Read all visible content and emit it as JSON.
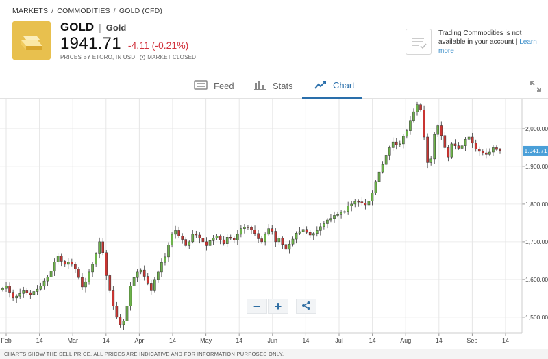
{
  "breadcrumb": {
    "items": [
      "MARKETS",
      "COMMODITIES",
      "GOLD (CFD)"
    ],
    "sep": "/"
  },
  "instrument": {
    "ticker": "GOLD",
    "sep": "|",
    "name": "Gold",
    "price": "1941.71",
    "change": "-4.11 (-0.21%)",
    "price_source": "PRICES BY ETORO, IN USD",
    "market_status": "MARKET CLOSED",
    "change_color": "#d1323c",
    "logo_color": "#e8c04e"
  },
  "notice": {
    "text": "Trading Commodities is not available in your account |",
    "link": "Learn more"
  },
  "tabs": [
    {
      "label": "Feed",
      "icon": "feed-icon"
    },
    {
      "label": "Stats",
      "icon": "stats-icon"
    },
    {
      "label": "Chart",
      "icon": "chart-icon",
      "active": true
    }
  ],
  "zoom": {
    "minus": "−",
    "plus": "+"
  },
  "footer": {
    "text": "CHARTS SHOW THE SELL PRICE. ALL PRICES ARE INDICATIVE AND FOR INFORMATION PURPOSES ONLY."
  },
  "chart_data": {
    "type": "candlestick",
    "x_labels": [
      "Feb",
      "14",
      "Mar",
      "14",
      "Apr",
      "14",
      "May",
      "14",
      "Jun",
      "14",
      "Jul",
      "14",
      "Aug",
      "14",
      "Sep",
      "14"
    ],
    "y_ticks": [
      "2,000.00",
      "1,900.00",
      "1,800.00",
      "1,700.00",
      "1,600.00",
      "1,500.00"
    ],
    "y_tick_values": [
      2000,
      1900,
      1800,
      1700,
      1600,
      1500
    ],
    "ylim": [
      1458,
      2078
    ],
    "last_price_label": "1,941.71",
    "last_price": 1941.71,
    "up_color": "#6db34a",
    "down_color": "#c93532",
    "closes": [
      1576,
      1583,
      1566,
      1551,
      1556,
      1563,
      1570,
      1565,
      1560,
      1568,
      1574,
      1582,
      1596,
      1606,
      1622,
      1646,
      1662,
      1648,
      1640,
      1646,
      1640,
      1628,
      1605,
      1580,
      1594,
      1620,
      1640,
      1668,
      1700,
      1671,
      1610,
      1570,
      1530,
      1500,
      1480,
      1490,
      1530,
      1583,
      1605,
      1620,
      1625,
      1608,
      1590,
      1570,
      1600,
      1620,
      1645,
      1660,
      1692,
      1720,
      1730,
      1715,
      1706,
      1690,
      1700,
      1720,
      1718,
      1710,
      1700,
      1690,
      1703,
      1710,
      1715,
      1705,
      1695,
      1712,
      1709,
      1705,
      1720,
      1735,
      1739,
      1738,
      1732,
      1722,
      1708,
      1700,
      1720,
      1735,
      1728,
      1700,
      1710,
      1693,
      1680,
      1694,
      1707,
      1723,
      1727,
      1733,
      1725,
      1718,
      1722,
      1730,
      1740,
      1748,
      1758,
      1762,
      1770,
      1772,
      1778,
      1780,
      1795,
      1800,
      1807,
      1806,
      1803,
      1798,
      1808,
      1830,
      1860,
      1885,
      1905,
      1930,
      1950,
      1965,
      1958,
      1960,
      1980,
      1995,
      2022,
      2045,
      2064,
      2050,
      1978,
      1910,
      1920,
      1985,
      2008,
      1982,
      1950,
      1925,
      1960,
      1955,
      1948,
      1955,
      1972,
      1978,
      1962,
      1946,
      1940,
      1936,
      1932,
      1938,
      1950,
      1945,
      1942
    ],
    "series_note": ""
  }
}
